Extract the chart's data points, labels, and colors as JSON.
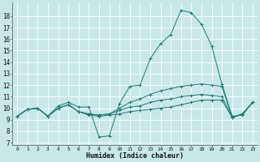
{
  "title": "",
  "xlabel": "Humidex (Indice chaleur)",
  "ylabel": "",
  "xlim": [
    -0.5,
    23.5
  ],
  "ylim": [
    6.8,
    19.2
  ],
  "yticks": [
    7,
    8,
    9,
    10,
    11,
    12,
    13,
    14,
    15,
    16,
    17,
    18
  ],
  "xticks": [
    0,
    1,
    2,
    3,
    4,
    5,
    6,
    7,
    8,
    9,
    10,
    11,
    12,
    13,
    14,
    15,
    16,
    17,
    18,
    19,
    20,
    21,
    22,
    23
  ],
  "bg_color": "#c8e8e8",
  "line_color": "#1a7a6e",
  "grid_color": "#ffffff",
  "curves": [
    {
      "x": [
        0,
        1,
        2,
        3,
        4,
        5,
        6,
        7,
        8,
        9,
        10,
        11,
        12,
        13,
        14,
        15,
        16,
        17,
        18,
        19,
        20,
        21,
        22,
        23
      ],
      "y": [
        9.3,
        9.9,
        10.0,
        9.3,
        10.2,
        10.5,
        10.1,
        10.1,
        7.5,
        7.6,
        10.4,
        11.9,
        12.0,
        14.3,
        15.6,
        16.4,
        18.5,
        18.3,
        17.3,
        15.4,
        12.1,
        9.3,
        9.4,
        10.5
      ]
    },
    {
      "x": [
        0,
        1,
        2,
        3,
        4,
        5,
        6,
        7,
        8,
        9,
        10,
        11,
        12,
        13,
        14,
        15,
        16,
        17,
        18,
        19,
        20,
        21,
        22,
        23
      ],
      "y": [
        9.3,
        9.9,
        10.0,
        9.3,
        10.0,
        10.3,
        9.7,
        9.4,
        9.3,
        9.4,
        9.5,
        9.7,
        9.8,
        9.9,
        10.0,
        10.1,
        10.3,
        10.5,
        10.7,
        10.7,
        10.7,
        9.2,
        9.5,
        10.5
      ]
    },
    {
      "x": [
        0,
        1,
        2,
        3,
        4,
        5,
        6,
        7,
        8,
        9,
        10,
        11,
        12,
        13,
        14,
        15,
        16,
        17,
        18,
        19,
        20,
        21,
        22,
        23
      ],
      "y": [
        9.3,
        9.9,
        10.0,
        9.3,
        10.0,
        10.3,
        9.7,
        9.5,
        9.4,
        9.5,
        10.0,
        10.5,
        10.8,
        11.2,
        11.5,
        11.7,
        11.9,
        12.0,
        12.1,
        12.0,
        11.9,
        9.2,
        9.5,
        10.5
      ]
    },
    {
      "x": [
        0,
        1,
        2,
        3,
        4,
        5,
        6,
        7,
        8,
        9,
        10,
        11,
        12,
        13,
        14,
        15,
        16,
        17,
        18,
        19,
        20,
        21,
        22,
        23
      ],
      "y": [
        9.3,
        9.9,
        10.0,
        9.3,
        10.0,
        10.3,
        9.7,
        9.5,
        9.4,
        9.5,
        9.8,
        10.1,
        10.2,
        10.5,
        10.7,
        10.8,
        11.0,
        11.1,
        11.2,
        11.1,
        11.0,
        9.2,
        9.5,
        10.5
      ]
    }
  ]
}
